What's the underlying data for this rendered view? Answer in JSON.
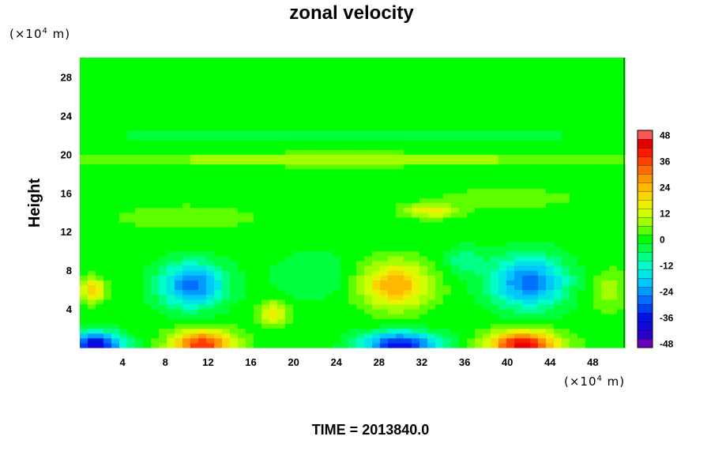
{
  "chart_data": {
    "type": "heatmap",
    "title": "zonal velocity",
    "ylabel": "Height",
    "xlabel": "",
    "x_unit": {
      "prefix": "(×10",
      "exp": "4",
      "suffix": " m)"
    },
    "y_unit": {
      "prefix": "(×10",
      "exp": "4",
      "suffix": " m)"
    },
    "xlim": [
      0,
      51
    ],
    "ylim": [
      0,
      30
    ],
    "x_ticks": [
      "4",
      "8",
      "12",
      "16",
      "20",
      "24",
      "28",
      "32",
      "36",
      "40",
      "44",
      "48"
    ],
    "y_ticks": [
      "4",
      "8",
      "12",
      "16",
      "20",
      "24",
      "28"
    ],
    "colorbar": {
      "range": [
        -50,
        50
      ],
      "ticks": [
        "48",
        "36",
        "24",
        "12",
        "0",
        "-12",
        "-24",
        "-36",
        "-48"
      ],
      "step": 4
    },
    "features": [
      {
        "x": 1.5,
        "y": 0.3,
        "value": -40,
        "sx": 2.5,
        "sy": 1.3
      },
      {
        "x": 11.5,
        "y": 0.4,
        "value": 38,
        "sx": 2.8,
        "sy": 1.4
      },
      {
        "x": 30,
        "y": 0.3,
        "value": -38,
        "sx": 3.5,
        "sy": 1.3
      },
      {
        "x": 41.5,
        "y": 0.3,
        "value": 44,
        "sx": 3.2,
        "sy": 1.4
      },
      {
        "x": 1.2,
        "y": 6.0,
        "value": 22,
        "sx": 1.2,
        "sy": 1.2
      },
      {
        "x": 10.5,
        "y": 6.5,
        "value": -28,
        "sx": 3.0,
        "sy": 2.3
      },
      {
        "x": 18.2,
        "y": 3.6,
        "value": 18,
        "sx": 1.3,
        "sy": 1.2
      },
      {
        "x": 29.5,
        "y": 6.5,
        "value": 26,
        "sx": 3.2,
        "sy": 2.3
      },
      {
        "x": 42,
        "y": 6.8,
        "value": -28,
        "sx": 3.5,
        "sy": 2.6
      },
      {
        "x": 22,
        "y": 7.5,
        "value": -6,
        "sx": 4.0,
        "sy": 2.5
      },
      {
        "x": 49.5,
        "y": 6.0,
        "value": 8,
        "sx": 2.0,
        "sy": 2.0
      },
      {
        "x": 33,
        "y": 14.2,
        "value": 16,
        "sx": 2.5,
        "sy": 0.7
      },
      {
        "x": 25,
        "y": 19.5,
        "value": 10,
        "sx": 25,
        "sy": 0.6
      },
      {
        "x": 25,
        "y": 22.0,
        "value": -5,
        "sx": 25,
        "sy": 0.5
      },
      {
        "x": 10,
        "y": 13.5,
        "value": 6,
        "sx": 6,
        "sy": 1.2
      },
      {
        "x": 40,
        "y": 15.5,
        "value": 5,
        "sx": 6,
        "sy": 1.0
      },
      {
        "x": 36,
        "y": 9.0,
        "value": -8,
        "sx": 2.0,
        "sy": 1.5
      }
    ],
    "time_label": "TIME = 2013840.0"
  }
}
